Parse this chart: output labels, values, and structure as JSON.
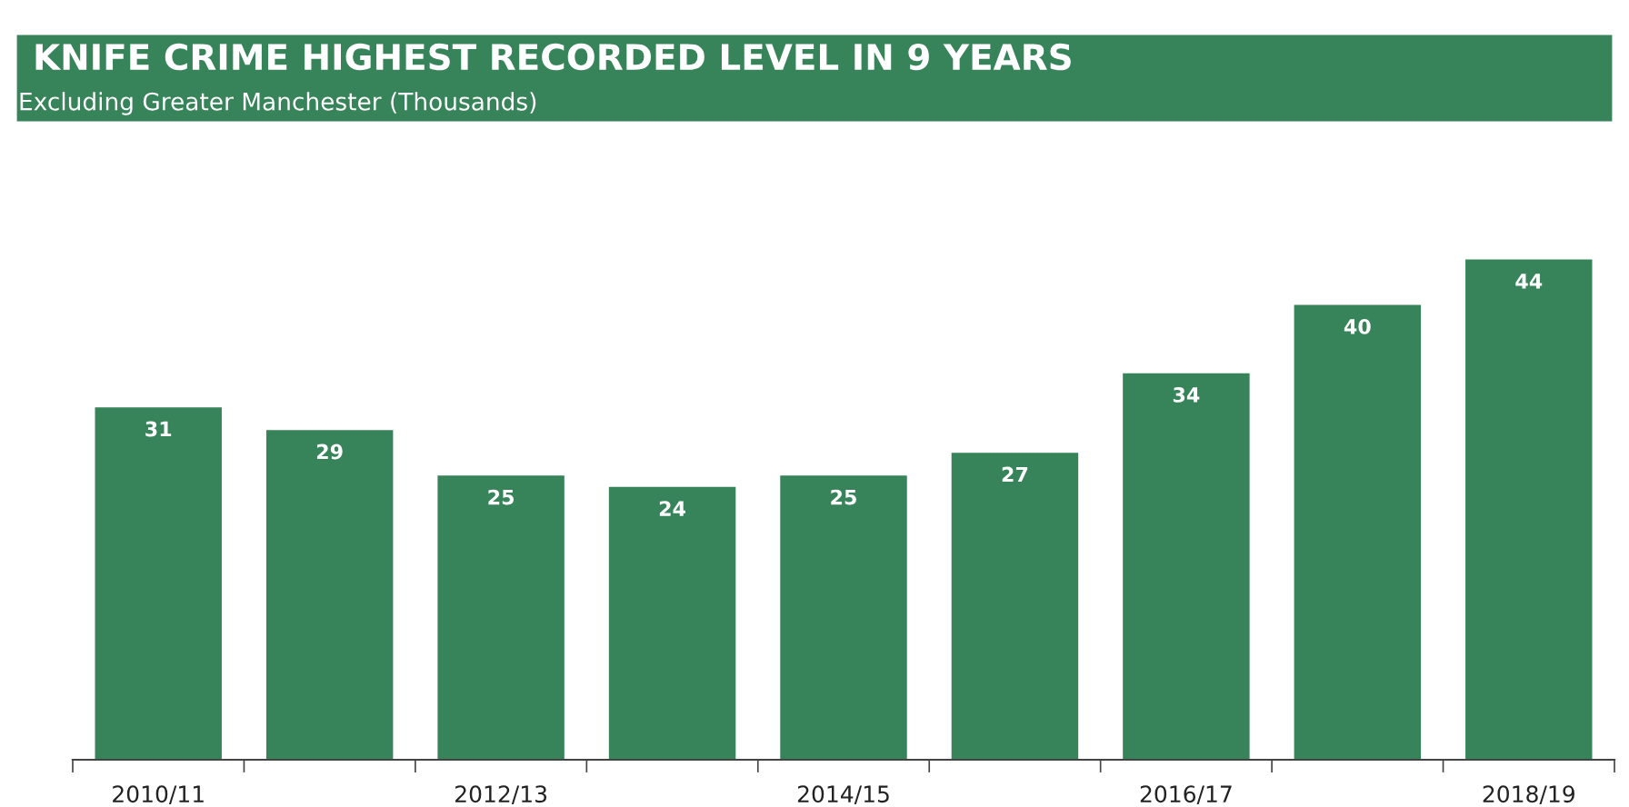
{
  "chart_data": {
    "type": "bar",
    "title": "KNIFE CRIME HIGHEST RECORDED LEVEL IN 9 YEARS",
    "subtitle": "Excluding Greater Manchester (Thousands)",
    "categories": [
      "2010/11",
      null,
      "2012/13",
      null,
      "2014/15",
      null,
      "2016/17",
      null,
      "2018/19"
    ],
    "values": [
      31,
      29,
      25,
      24,
      25,
      27,
      34,
      40,
      44
    ],
    "color": "#38845a",
    "data_labels": true,
    "grid": false,
    "legend": false
  }
}
